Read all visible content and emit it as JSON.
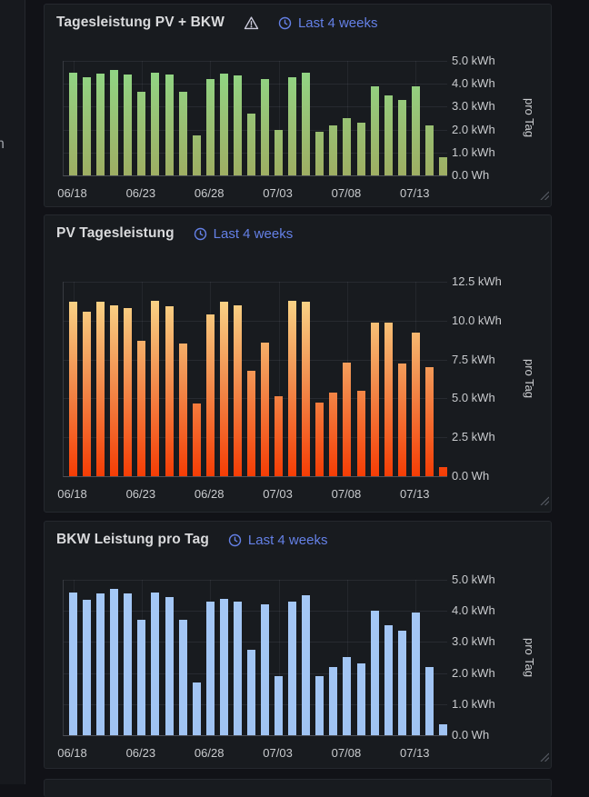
{
  "page": {
    "bg_color": "#111217",
    "panel_bg_color": "#181b1f",
    "link_color": "#6480e6",
    "axis_text_color": "#c9cbce",
    "title_color": "#d9dadc",
    "sidebar_fragment": "n"
  },
  "panels": [
    {
      "title": "Tagesleistung PV + BKW",
      "has_warning": true,
      "time_range": "Last 4 weeks",
      "chart_data": {
        "type": "bar",
        "title": "Tagesleistung PV + BKW",
        "ylabel": "pro Tag",
        "ylim": [
          0,
          5
        ],
        "grid": true,
        "x": [
          "06/18",
          "06/19",
          "06/20",
          "06/21",
          "06/22",
          "06/23",
          "06/24",
          "06/25",
          "06/26",
          "06/27",
          "06/28",
          "06/29",
          "06/30",
          "07/01",
          "07/02",
          "07/03",
          "07/04",
          "07/05",
          "07/06",
          "07/07",
          "07/08",
          "07/09",
          "07/10",
          "07/11",
          "07/12",
          "07/13",
          "07/14",
          "07/15"
        ],
        "values": [
          4.5,
          4.3,
          4.45,
          4.6,
          4.4,
          3.65,
          4.5,
          4.4,
          3.65,
          1.75,
          4.2,
          4.45,
          4.35,
          2.7,
          4.2,
          2.0,
          4.3,
          4.5,
          1.9,
          2.2,
          2.5,
          2.3,
          3.9,
          3.5,
          3.3,
          3.9,
          2.2,
          0.8
        ],
        "x_ticks": [
          {
            "i": 0,
            "label": "06/18"
          },
          {
            "i": 5,
            "label": "06/23"
          },
          {
            "i": 10,
            "label": "06/28"
          },
          {
            "i": 15,
            "label": "07/03"
          },
          {
            "i": 20,
            "label": "07/08"
          },
          {
            "i": 25,
            "label": "07/13"
          }
        ],
        "y_ticks": [
          "5.0 kWh",
          "4.0 kWh",
          "3.0 kWh",
          "2.0 kWh",
          "1.0 kWh",
          "0.0 Wh"
        ],
        "bar_gradient": [
          "#8FD987",
          "#98C275",
          "#9EAE63"
        ]
      }
    },
    {
      "title": "PV Tagesleistung",
      "has_warning": false,
      "time_range": "Last 4 weeks",
      "chart_data": {
        "type": "bar",
        "title": "PV Tagesleistung",
        "ylabel": "pro Tag",
        "ylim": [
          0,
          12.5
        ],
        "grid": true,
        "x": [
          "06/18",
          "06/19",
          "06/20",
          "06/21",
          "06/22",
          "06/23",
          "06/24",
          "06/25",
          "06/26",
          "06/27",
          "06/28",
          "06/29",
          "06/30",
          "07/01",
          "07/02",
          "07/03",
          "07/04",
          "07/05",
          "07/06",
          "07/07",
          "07/08",
          "07/09",
          "07/10",
          "07/11",
          "07/12",
          "07/13",
          "07/14",
          "07/15"
        ],
        "values": [
          11.2,
          10.6,
          11.2,
          11.0,
          10.8,
          8.7,
          11.3,
          10.9,
          8.5,
          4.7,
          10.4,
          11.2,
          11.0,
          6.8,
          8.6,
          5.15,
          11.3,
          11.2,
          4.75,
          5.4,
          7.3,
          5.5,
          9.9,
          9.9,
          7.25,
          9.2,
          7.0,
          0.6
        ],
        "x_ticks": [
          {
            "i": 0,
            "label": "06/18"
          },
          {
            "i": 5,
            "label": "06/23"
          },
          {
            "i": 10,
            "label": "06/28"
          },
          {
            "i": 15,
            "label": "07/03"
          },
          {
            "i": 20,
            "label": "07/08"
          },
          {
            "i": 25,
            "label": "07/13"
          }
        ],
        "y_ticks": [
          "12.5 kWh",
          "10.0 kWh",
          "7.5 kWh",
          "5.0 kWh",
          "2.5 kWh",
          "0.0 Wh"
        ],
        "bar_gradient": [
          "#FAE292",
          "#F29050",
          "#F53D05"
        ]
      }
    },
    {
      "title": "BKW Leistung pro Tag",
      "has_warning": false,
      "time_range": "Last 4 weeks",
      "chart_data": {
        "type": "bar",
        "title": "BKW Leistung pro Tag",
        "ylabel": "pro Tag",
        "ylim": [
          0,
          5
        ],
        "grid": true,
        "x": [
          "06/18",
          "06/19",
          "06/20",
          "06/21",
          "06/22",
          "06/23",
          "06/24",
          "06/25",
          "06/26",
          "06/27",
          "06/28",
          "06/29",
          "06/30",
          "07/01",
          "07/02",
          "07/03",
          "07/04",
          "07/05",
          "07/06",
          "07/07",
          "07/08",
          "07/09",
          "07/10",
          "07/11",
          "07/12",
          "07/13",
          "07/14",
          "07/15"
        ],
        "values": [
          4.6,
          4.35,
          4.55,
          4.7,
          4.55,
          3.7,
          4.6,
          4.45,
          3.7,
          1.7,
          4.3,
          4.4,
          4.3,
          2.75,
          4.2,
          1.9,
          4.3,
          4.5,
          1.9,
          2.2,
          2.5,
          2.3,
          4.0,
          3.55,
          3.35,
          3.95,
          2.2,
          0.35
        ],
        "x_ticks": [
          {
            "i": 0,
            "label": "06/18"
          },
          {
            "i": 5,
            "label": "06/23"
          },
          {
            "i": 10,
            "label": "06/28"
          },
          {
            "i": 15,
            "label": "07/03"
          },
          {
            "i": 20,
            "label": "07/08"
          },
          {
            "i": 25,
            "label": "07/13"
          }
        ],
        "y_ticks": [
          "5.0 kWh",
          "4.0 kWh",
          "3.0 kWh",
          "2.0 kWh",
          "1.0 kWh",
          "0.0 Wh"
        ],
        "bar_gradient": [
          "#A5C8F6",
          "#A0C3F2"
        ]
      }
    }
  ]
}
